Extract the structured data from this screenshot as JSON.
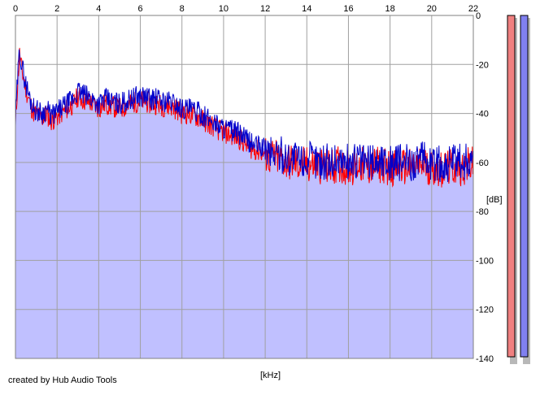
{
  "chart_data": {
    "type": "area",
    "xlabel": "[kHz]",
    "ylabel": "[dB]",
    "xlim": [
      0,
      22
    ],
    "ylim": [
      -140,
      0
    ],
    "xticks": [
      0,
      2,
      4,
      6,
      8,
      10,
      12,
      14,
      16,
      18,
      20,
      22
    ],
    "yticks": [
      0,
      -20,
      -40,
      -60,
      -80,
      -100,
      -120,
      -140
    ],
    "grid": true,
    "x_axis_position": "top",
    "y_axis_position": "right",
    "colors": {
      "fill": "#c0c0ff",
      "series_red": "#ff0000",
      "series_blue": "#0000cc"
    },
    "x": [
      0.0,
      0.1,
      0.2,
      0.3,
      0.5,
      0.7,
      0.9,
      1.1,
      1.3,
      1.5,
      1.7,
      1.9,
      2.2,
      2.5,
      2.8,
      3.0,
      3.2,
      3.4,
      3.7,
      4.0,
      4.3,
      4.6,
      5.0,
      5.3,
      5.6,
      5.9,
      6.2,
      6.5,
      6.8,
      7.1,
      7.4,
      7.7,
      8.0,
      8.3,
      8.6,
      8.9,
      9.2,
      9.5,
      9.8,
      10.1,
      10.4,
      10.7,
      11.0,
      11.3,
      11.6,
      11.9,
      12.2,
      12.5,
      12.8,
      13.1,
      13.4,
      13.7,
      14.0,
      14.5,
      15.0,
      15.5,
      16.0,
      16.5,
      17.0,
      17.5,
      18.0,
      18.5,
      19.0,
      19.5,
      20.0,
      20.5,
      21.0,
      21.5,
      22.0
    ],
    "series": [
      {
        "values": [
          -45,
          -28,
          -16,
          -22,
          -30,
          -36,
          -40,
          -41,
          -42,
          -40,
          -43,
          -42,
          -40,
          -38,
          -36,
          -33,
          -34,
          -35,
          -36,
          -38,
          -36,
          -37,
          -38,
          -37,
          -36,
          -35,
          -35,
          -36,
          -36,
          -37,
          -37,
          -38,
          -40,
          -40,
          -41,
          -42,
          -44,
          -45,
          -47,
          -48,
          -49,
          -50,
          -52,
          -54,
          -55,
          -56,
          -58,
          -58,
          -59,
          -60,
          -60,
          -61,
          -61,
          -61,
          -62,
          -61,
          -62,
          -61,
          -62,
          -61,
          -62,
          -62,
          -62,
          -61,
          -62,
          -63,
          -62,
          -62,
          -61
        ]
      },
      {
        "values": [
          -44,
          -26,
          -14,
          -20,
          -28,
          -34,
          -38,
          -39,
          -40,
          -38,
          -41,
          -40,
          -38,
          -36,
          -34,
          -31,
          -32,
          -33,
          -34,
          -36,
          -34,
          -35,
          -36,
          -35,
          -34,
          -33,
          -33,
          -34,
          -34,
          -35,
          -35,
          -36,
          -38,
          -38,
          -39,
          -40,
          -42,
          -43,
          -45,
          -46,
          -47,
          -48,
          -50,
          -52,
          -53,
          -54,
          -56,
          -56,
          -57,
          -58,
          -58,
          -59,
          -59,
          -59,
          -60,
          -59,
          -60,
          -59,
          -60,
          -59,
          -60,
          -60,
          -60,
          -59,
          -60,
          -61,
          -60,
          -60,
          -59
        ]
      }
    ]
  },
  "footer": {
    "credit": "created by Hub Audio Tools",
    "x_unit": "[kHz]",
    "y_unit": "[dB]"
  },
  "level_meters": {
    "left_color": "#f08080",
    "right_color": "#8080f0"
  }
}
